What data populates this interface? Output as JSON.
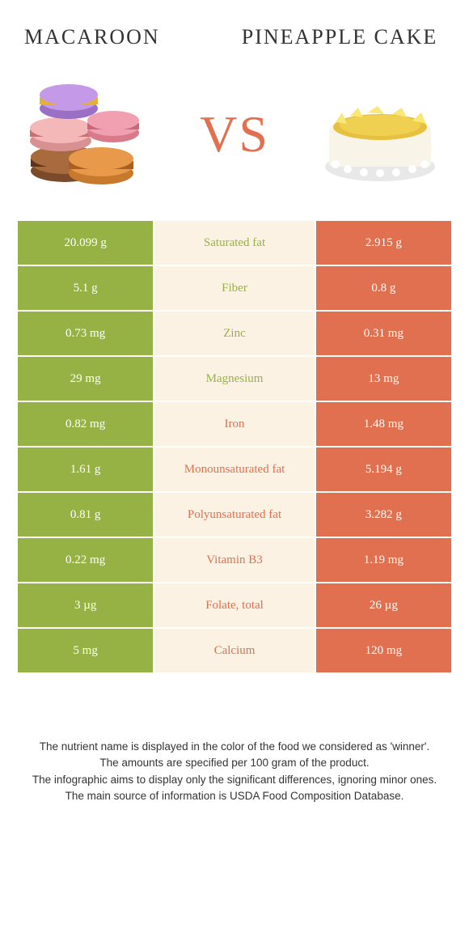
{
  "header": {
    "left_title": "Macaroon",
    "right_title": "Pineapple cake",
    "vs": "VS"
  },
  "colors": {
    "green": "#96b244",
    "orange": "#e0704f",
    "mid_bg": "#fbf2e3",
    "border": "#ffffff"
  },
  "rows": [
    {
      "left": "20.099 g",
      "label": "Saturated fat",
      "right": "2.915 g",
      "winner": "left"
    },
    {
      "left": "5.1 g",
      "label": "Fiber",
      "right": "0.8 g",
      "winner": "left"
    },
    {
      "left": "0.73 mg",
      "label": "Zinc",
      "right": "0.31 mg",
      "winner": "left"
    },
    {
      "left": "29 mg",
      "label": "Magnesium",
      "right": "13 mg",
      "winner": "left"
    },
    {
      "left": "0.82 mg",
      "label": "Iron",
      "right": "1.48 mg",
      "winner": "right"
    },
    {
      "left": "1.61 g",
      "label": "Monounsaturated fat",
      "right": "5.194 g",
      "winner": "right"
    },
    {
      "left": "0.81 g",
      "label": "Polyunsaturated fat",
      "right": "3.282 g",
      "winner": "right"
    },
    {
      "left": "0.22 mg",
      "label": "Vitamin B3",
      "right": "1.19 mg",
      "winner": "right"
    },
    {
      "left": "3 µg",
      "label": "Folate, total",
      "right": "26 µg",
      "winner": "right"
    },
    {
      "left": "5 mg",
      "label": "Calcium",
      "right": "120 mg",
      "winner": "right"
    }
  ],
  "footer": {
    "line1": "The nutrient name is displayed in the color of the food we considered as 'winner'.",
    "line2": "The amounts are specified per 100 gram of the product.",
    "line3": "The infographic aims to display only the significant differences, ignoring minor ones.",
    "line4": "The main source of information is USDA Food Composition Database."
  }
}
